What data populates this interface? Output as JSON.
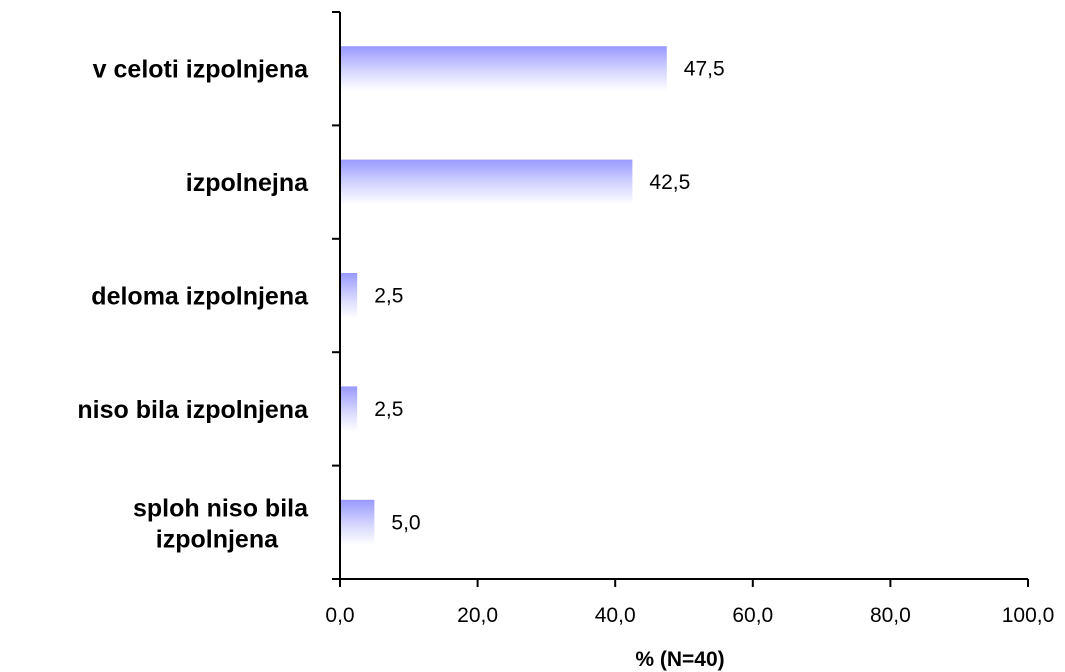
{
  "chart_data": {
    "type": "bar",
    "orientation": "horizontal",
    "categories": [
      "v celoti izpolnjena",
      "izpolnejna",
      "deloma izpolnjena",
      "niso bila izpolnjena",
      "sploh niso bila izpolnjena"
    ],
    "values": [
      47.5,
      42.5,
      2.5,
      2.5,
      5.0
    ],
    "value_labels": [
      "47,5",
      "42,5",
      "2,5",
      "2,5",
      "5,0"
    ],
    "xlabel": "% (N=40)",
    "xlim": [
      0,
      100
    ],
    "xticks": [
      0,
      20,
      40,
      60,
      80,
      100
    ],
    "xtick_labels": [
      "0,0",
      "20,0",
      "40,0",
      "60,0",
      "80,0",
      "100,0"
    ],
    "grid": false,
    "legend": "none",
    "bar_color": "#9999ff"
  }
}
